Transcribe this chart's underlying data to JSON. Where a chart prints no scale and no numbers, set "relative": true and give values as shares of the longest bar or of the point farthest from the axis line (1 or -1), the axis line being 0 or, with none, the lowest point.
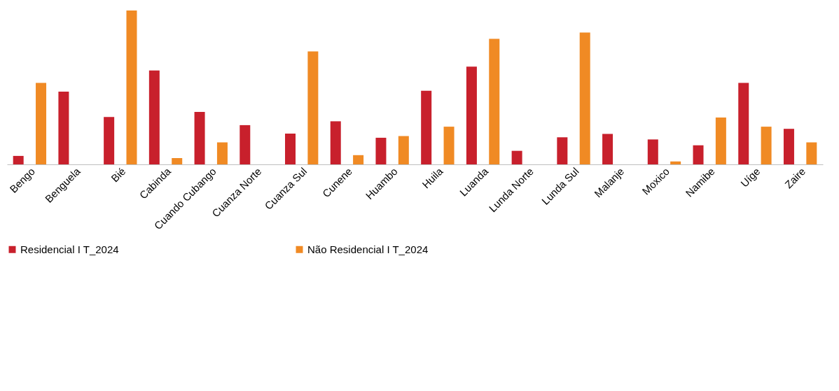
{
  "chart_data": {
    "type": "bar",
    "relative": true,
    "categories": [
      "Bengo",
      "Benguela",
      "Bié",
      "Cabinda",
      "Cuando Cubango",
      "Cuanza Norte",
      "Cuanza Sul",
      "Cunene",
      "Huambo",
      "Huila",
      "Luanda",
      "Lunda Norte",
      "Lunda Sul",
      "Malanje",
      "Moxico",
      "Namibe",
      "Uíge",
      "Zaire"
    ],
    "series": [
      {
        "name": "Residencial I T_2024",
        "color": "#c8202c",
        "values": [
          0.055,
          0.473,
          0.308,
          0.61,
          0.341,
          0.255,
          0.2,
          0.28,
          0.173,
          0.478,
          0.635,
          0.088,
          0.176,
          0.198,
          0.162,
          0.124,
          0.53,
          0.231
        ]
      },
      {
        "name": "Não Residencial I T_2024",
        "color": "#f08a24",
        "values": [
          0.53,
          null,
          1,
          0.041,
          0.143,
          null,
          0.734,
          0.06,
          0.184,
          0.245,
          0.816,
          null,
          0.857,
          null,
          0.019,
          0.305,
          0.245,
          0.143
        ]
      }
    ],
    "legend": "bottom",
    "grid": false
  }
}
